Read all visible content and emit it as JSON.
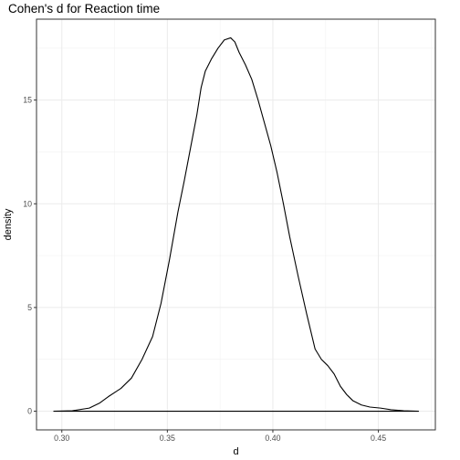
{
  "chart_data": {
    "type": "area",
    "title": "Cohen's d for Reaction time",
    "xlabel": "d",
    "ylabel": "density",
    "xlim": [
      0.288,
      0.477
    ],
    "ylim": [
      -0.9,
      18.9
    ],
    "x_ticks": [
      0.3,
      0.35,
      0.4,
      0.45
    ],
    "x_tick_labels": [
      "0.30",
      "0.35",
      "0.40",
      "0.45"
    ],
    "y_ticks": [
      0,
      5,
      10,
      15
    ],
    "y_tick_labels": [
      "0",
      "5",
      "10",
      "15"
    ],
    "grid": true,
    "legend": "none",
    "line_color": "#000000",
    "series": [
      {
        "x": [
          0.296,
          0.305,
          0.313,
          0.318,
          0.322,
          0.328,
          0.333,
          0.338,
          0.343,
          0.347,
          0.351,
          0.355,
          0.358,
          0.361,
          0.364,
          0.366,
          0.368,
          0.371,
          0.374,
          0.377,
          0.38,
          0.382,
          0.384,
          0.387,
          0.39,
          0.393,
          0.396,
          0.399,
          0.402,
          0.405,
          0.408,
          0.412,
          0.416,
          0.42,
          0.423,
          0.426,
          0.429,
          0.432,
          0.435,
          0.438,
          0.442,
          0.446,
          0.451,
          0.456,
          0.462,
          0.469
        ],
        "y": [
          0.0,
          0.02,
          0.15,
          0.4,
          0.7,
          1.1,
          1.6,
          2.5,
          3.6,
          5.2,
          7.3,
          9.6,
          11.1,
          12.7,
          14.3,
          15.6,
          16.4,
          17.0,
          17.5,
          17.9,
          18.0,
          17.8,
          17.3,
          16.7,
          16.0,
          15.0,
          13.9,
          12.8,
          11.5,
          10.0,
          8.4,
          6.5,
          4.7,
          3.0,
          2.5,
          2.2,
          1.8,
          1.2,
          0.8,
          0.5,
          0.3,
          0.2,
          0.15,
          0.07,
          0.02,
          0.0
        ]
      }
    ]
  }
}
